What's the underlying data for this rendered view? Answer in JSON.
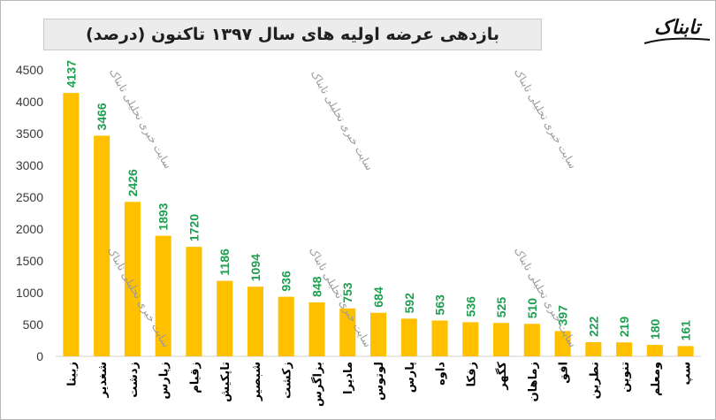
{
  "header": {
    "title": "بازدهی عرضه اولیه های سال ۱۳۹۷ تاکنون (درصد)",
    "logo_text": "تابناک"
  },
  "watermark": {
    "text": "سایت خبری تحلیلی تابناک"
  },
  "colors": {
    "bar": "#FFC000",
    "value_label": "#1E9E50",
    "axis_text": "#3a3a3a",
    "category_text": "#000000"
  },
  "chart_data": {
    "type": "bar",
    "title": "بازدهی عرضه اولیه های سال ۱۳۹۷ تاکنون (درصد)",
    "xlabel": "",
    "ylabel": "",
    "ylim": [
      0,
      4500
    ],
    "yticks": [
      "0",
      "500",
      "1000",
      "1500",
      "2000",
      "2500",
      "3000",
      "3500",
      "4000",
      "4500"
    ],
    "grid": false,
    "categories": [
      "زبینا",
      "شغدیر",
      "زدشت",
      "زپارس",
      "زقیام",
      "تاپکیش",
      "شبصیر",
      "زکشت",
      "بزاگرس",
      "ماديرا",
      "لوتوس",
      "پارس",
      "داوه",
      "زفکا",
      "کگهر",
      "زماهان",
      "افق",
      "نطرین",
      "تنوین",
      "ومعلم",
      "سپ"
    ],
    "values": [
      4137,
      3466,
      2426,
      1893,
      1720,
      1186,
      1094,
      936,
      848,
      753,
      684,
      592,
      563,
      536,
      525,
      510,
      397,
      222,
      219,
      180,
      161
    ],
    "value_labels": [
      "4137",
      "3466",
      "2426",
      "1893",
      "1720",
      "1186",
      "1094",
      "936",
      "848",
      "753",
      "684",
      "592",
      "563",
      "536",
      "525",
      "510",
      "397",
      "222",
      "219",
      "180",
      "161"
    ]
  }
}
